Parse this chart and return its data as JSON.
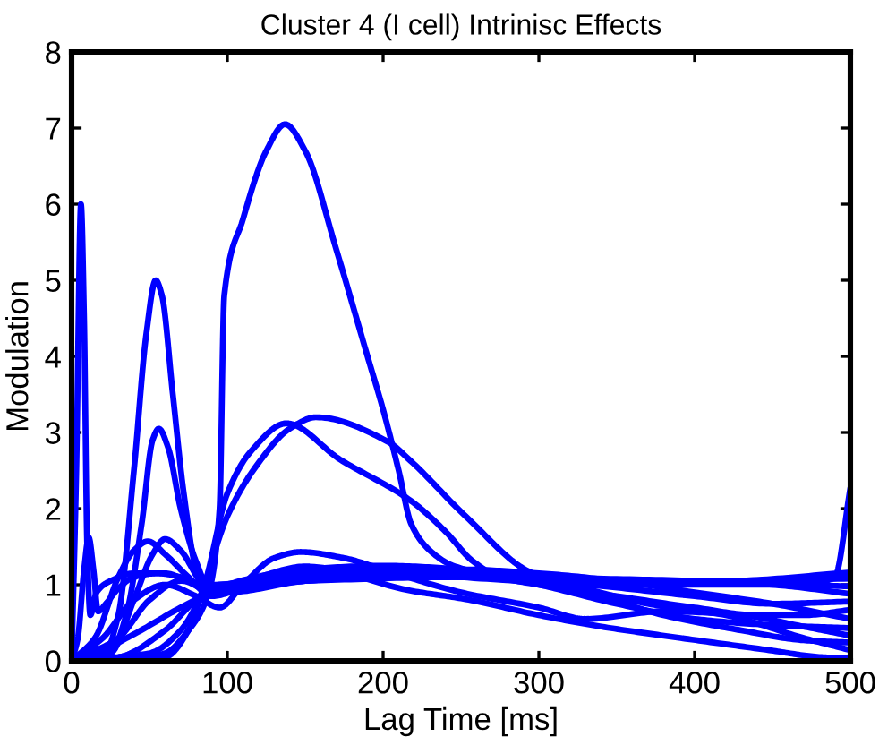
{
  "chart_data": {
    "type": "line",
    "title": "Cluster 4 (I cell) Intrinisc Effects",
    "xlabel": "Lag Time [ms]",
    "ylabel": "Modulation",
    "xlim": [
      0,
      500
    ],
    "ylim": [
      0,
      8
    ],
    "xticks": [
      0,
      100,
      200,
      300,
      400,
      500
    ],
    "yticks": [
      0,
      1,
      2,
      3,
      4,
      5,
      6,
      7,
      8
    ],
    "series": [
      {
        "color": "#0000ff",
        "x": [
          0,
          3,
          6,
          8,
          10,
          12,
          16,
          25,
          40,
          60,
          80,
          100,
          150,
          200,
          250,
          300,
          350,
          400,
          450,
          500
        ],
        "values": [
          0,
          2.5,
          6.0,
          4.5,
          1.5,
          0.6,
          0.9,
          1.05,
          1.15,
          1.15,
          1.0,
          0.95,
          1.05,
          1.1,
          1.1,
          1.05,
          1.0,
          1.0,
          1.0,
          0.98
        ]
      },
      {
        "color": "#0000ff",
        "x": [
          0,
          4,
          8,
          11,
          14,
          17,
          22,
          30,
          40,
          55,
          70,
          85,
          100,
          150,
          200,
          250,
          300,
          400,
          450,
          500
        ],
        "values": [
          0,
          0.3,
          1.2,
          1.62,
          1.2,
          0.65,
          0.75,
          0.95,
          1.1,
          1.15,
          1.1,
          0.95,
          1.0,
          1.1,
          1.15,
          1.15,
          1.1,
          1.05,
          1.0,
          0.88
        ]
      },
      {
        "color": "#0000ff",
        "x": [
          0,
          20,
          30,
          40,
          48,
          54,
          58,
          65,
          72,
          80,
          88,
          100,
          150,
          200,
          250,
          300,
          350,
          400,
          450,
          500
        ],
        "values": [
          0,
          0.05,
          0.6,
          2.5,
          4.3,
          5.0,
          4.8,
          3.5,
          2.2,
          1.2,
          0.9,
          1.0,
          1.15,
          1.2,
          1.2,
          1.15,
          1.05,
          0.9,
          0.75,
          0.55
        ]
      },
      {
        "color": "#0000ff",
        "x": [
          0,
          25,
          35,
          45,
          52,
          56,
          62,
          70,
          80,
          90,
          100,
          150,
          200,
          250,
          300,
          350,
          400,
          450,
          500
        ],
        "values": [
          0,
          0.1,
          0.6,
          1.8,
          2.9,
          3.05,
          2.8,
          2.0,
          1.3,
          0.9,
          1.0,
          1.2,
          1.25,
          1.2,
          1.0,
          0.75,
          0.55,
          0.47,
          0.43
        ]
      },
      {
        "color": "#0000ff",
        "x": [
          0,
          40,
          60,
          75,
          88,
          95,
          98,
          110,
          125,
          137,
          150,
          170,
          190,
          200,
          210,
          218,
          230,
          245,
          265,
          300,
          400,
          500
        ],
        "values": [
          0,
          0.02,
          0.1,
          0.4,
          0.9,
          2.0,
          4.8,
          5.8,
          6.7,
          7.05,
          6.7,
          5.4,
          4.0,
          3.3,
          2.5,
          1.8,
          1.45,
          1.25,
          1.15,
          1.1,
          1.05,
          1.08
        ]
      },
      {
        "color": "#0000ff",
        "x": [
          0,
          50,
          70,
          84,
          100,
          115,
          138,
          172,
          218,
          240,
          257,
          275,
          300,
          350,
          400,
          440,
          470,
          500
        ],
        "values": [
          0,
          0.1,
          0.4,
          0.92,
          2.2,
          2.75,
          3.12,
          2.65,
          2.1,
          1.7,
          1.32,
          1.1,
          1.0,
          0.85,
          0.7,
          0.6,
          0.6,
          0.67
        ]
      },
      {
        "color": "#0000ff",
        "x": [
          0,
          60,
          75,
          84,
          100,
          120,
          140,
          157,
          203,
          218,
          253,
          295,
          330,
          370,
          420,
          470,
          500
        ],
        "values": [
          0,
          0.05,
          0.4,
          0.92,
          1.9,
          2.6,
          3.05,
          3.2,
          2.88,
          2.62,
          1.9,
          1.16,
          0.95,
          0.75,
          0.6,
          0.3,
          0.14
        ]
      },
      {
        "color": "#0000ff",
        "x": [
          0,
          20,
          40,
          60,
          80,
          95,
          110,
          130,
          147,
          175,
          200,
          250,
          300,
          330,
          380,
          430,
          470,
          500
        ],
        "values": [
          0,
          0.3,
          0.8,
          1.0,
          0.85,
          0.7,
          1.0,
          1.35,
          1.43,
          1.35,
          1.2,
          0.9,
          0.7,
          0.55,
          0.65,
          0.6,
          0.45,
          0.33
        ]
      },
      {
        "color": "#0000ff",
        "x": [
          0,
          30,
          50,
          70,
          90,
          150,
          200,
          300,
          400,
          470,
          490,
          500
        ],
        "values": [
          0,
          0.3,
          0.8,
          1.05,
          1.0,
          1.1,
          1.15,
          1.05,
          1.05,
          1.0,
          1.1,
          2.27
        ]
      },
      {
        "color": "#0000ff",
        "x": [
          0,
          10,
          40,
          70,
          90,
          120,
          150,
          218,
          253,
          300,
          340,
          391,
          448,
          480,
          500
        ],
        "values": [
          0,
          0.05,
          0.35,
          0.7,
          0.9,
          1.1,
          1.24,
          0.92,
          0.81,
          0.6,
          0.45,
          0.3,
          0.14,
          0.05,
          0.03
        ]
      },
      {
        "color": "#0000ff",
        "x": [
          0,
          30,
          60,
          80,
          95,
          150,
          250,
          330,
          400,
          450,
          500
        ],
        "values": [
          0,
          0.05,
          0.4,
          0.8,
          1.0,
          1.05,
          1.1,
          1.0,
          0.85,
          0.75,
          0.78
        ]
      },
      {
        "color": "#0000ff",
        "x": [
          0,
          15,
          30,
          40,
          49,
          60,
          75,
          90,
          110,
          160,
          250,
          320,
          380,
          430,
          470,
          500
        ],
        "values": [
          0,
          0.3,
          1.1,
          1.45,
          1.57,
          1.4,
          1.1,
          0.85,
          0.95,
          1.1,
          1.1,
          0.95,
          0.6,
          0.4,
          0.27,
          0.24
        ]
      },
      {
        "color": "#0000ff",
        "x": [
          0,
          25,
          40,
          52,
          60,
          70,
          85,
          100,
          150,
          250,
          350,
          420,
          500
        ],
        "values": [
          0,
          0.1,
          0.8,
          1.4,
          1.6,
          1.45,
          1.0,
          0.9,
          1.05,
          1.15,
          1.05,
          1.05,
          1.16
        ]
      }
    ]
  }
}
